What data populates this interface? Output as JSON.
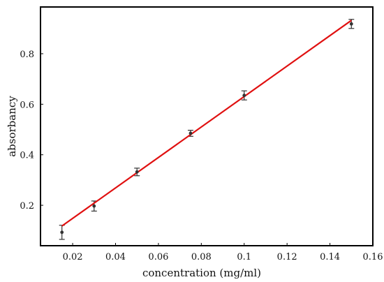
{
  "chart_data": {
    "type": "scatter",
    "title": "",
    "xlabel": "concentration (mg/ml)",
    "ylabel": "absorbancy",
    "xlim": [
      0.005,
      0.16
    ],
    "ylim": [
      0.04,
      0.985
    ],
    "x_ticks": [
      0.02,
      0.04,
      0.06,
      0.08,
      0.1,
      0.12,
      0.14,
      0.16
    ],
    "x_tick_labels": [
      "0.02",
      "0.04",
      "0.06",
      "0.08",
      "0.1",
      "0.12",
      "0.14",
      "0.16"
    ],
    "y_ticks": [
      0.2,
      0.4,
      0.6,
      0.8
    ],
    "y_tick_labels": [
      "0.2",
      "0.4",
      "0.6",
      "0.8"
    ],
    "grid": false,
    "legend": "none",
    "series": [
      {
        "points": [
          {
            "x": 0.015,
            "y": 0.093,
            "err": 0.028
          },
          {
            "x": 0.03,
            "y": 0.197,
            "err": 0.02
          },
          {
            "x": 0.05,
            "y": 0.332,
            "err": 0.015
          },
          {
            "x": 0.075,
            "y": 0.485,
            "err": 0.012
          },
          {
            "x": 0.1,
            "y": 0.635,
            "err": 0.018
          },
          {
            "x": 0.15,
            "y": 0.918,
            "err": 0.018
          }
        ],
        "marker_color": "#333333"
      }
    ],
    "fit_line": {
      "x": [
        0.015,
        0.15
      ],
      "y": [
        0.118,
        0.932
      ],
      "color": "#e01010"
    }
  }
}
